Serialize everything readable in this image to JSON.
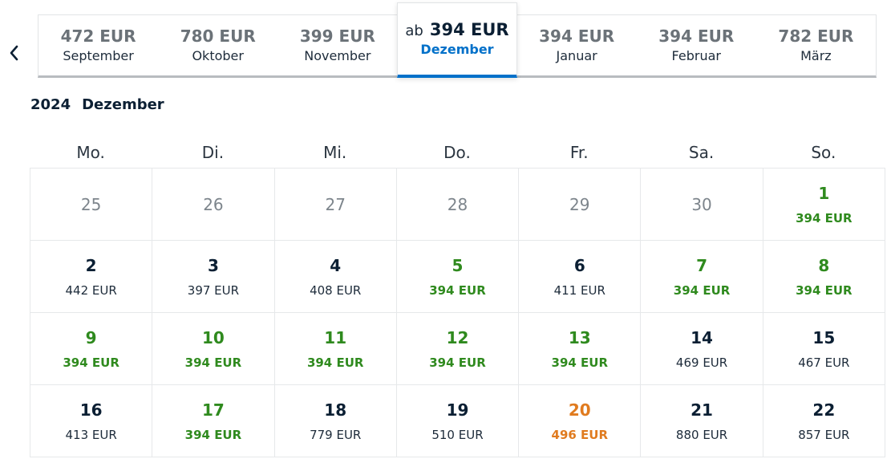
{
  "nav": {
    "prev_icon": "chevron-left-icon"
  },
  "months": [
    {
      "price": "472 EUR",
      "name": "September"
    },
    {
      "price": "780 EUR",
      "name": "Oktober"
    },
    {
      "price": "399 EUR",
      "name": "November"
    },
    {
      "prefix": "ab",
      "price": "394 EUR",
      "name": "Dezember",
      "active": true
    },
    {
      "price": "394 EUR",
      "name": "Januar"
    },
    {
      "price": "394 EUR",
      "name": "Februar"
    },
    {
      "price": "782 EUR",
      "name": "März"
    }
  ],
  "calendar": {
    "year": "2024",
    "month": "Dezember",
    "weekdays": [
      "Mo.",
      "Di.",
      "Mi.",
      "Do.",
      "Fr.",
      "Sa.",
      "So."
    ],
    "days": [
      {
        "day": "25",
        "price": "",
        "state": "outside"
      },
      {
        "day": "26",
        "price": "",
        "state": "outside"
      },
      {
        "day": "27",
        "price": "",
        "state": "outside"
      },
      {
        "day": "28",
        "price": "",
        "state": "outside"
      },
      {
        "day": "29",
        "price": "",
        "state": "outside"
      },
      {
        "day": "30",
        "price": "",
        "state": "outside"
      },
      {
        "day": "1",
        "price": "394 EUR",
        "state": "cheap"
      },
      {
        "day": "2",
        "price": "442 EUR",
        "state": "normal"
      },
      {
        "day": "3",
        "price": "397 EUR",
        "state": "normal"
      },
      {
        "day": "4",
        "price": "408 EUR",
        "state": "normal"
      },
      {
        "day": "5",
        "price": "394 EUR",
        "state": "cheap"
      },
      {
        "day": "6",
        "price": "411 EUR",
        "state": "normal"
      },
      {
        "day": "7",
        "price": "394 EUR",
        "state": "cheap"
      },
      {
        "day": "8",
        "price": "394 EUR",
        "state": "cheap"
      },
      {
        "day": "9",
        "price": "394 EUR",
        "state": "cheap"
      },
      {
        "day": "10",
        "price": "394 EUR",
        "state": "cheap"
      },
      {
        "day": "11",
        "price": "394 EUR",
        "state": "cheap"
      },
      {
        "day": "12",
        "price": "394 EUR",
        "state": "cheap"
      },
      {
        "day": "13",
        "price": "394 EUR",
        "state": "cheap"
      },
      {
        "day": "14",
        "price": "469 EUR",
        "state": "normal"
      },
      {
        "day": "15",
        "price": "467 EUR",
        "state": "normal"
      },
      {
        "day": "16",
        "price": "413 EUR",
        "state": "normal"
      },
      {
        "day": "17",
        "price": "394 EUR",
        "state": "cheap"
      },
      {
        "day": "18",
        "price": "779 EUR",
        "state": "normal"
      },
      {
        "day": "19",
        "price": "510 EUR",
        "state": "normal"
      },
      {
        "day": "20",
        "price": "496 EUR",
        "state": "mid"
      },
      {
        "day": "21",
        "price": "880 EUR",
        "state": "normal"
      },
      {
        "day": "22",
        "price": "857 EUR",
        "state": "normal"
      }
    ]
  },
  "colors": {
    "accent": "#0070c9",
    "cheap": "#2f8a1e",
    "mid": "#e07b1f",
    "text": "#0b1f33",
    "muted": "#6b7278"
  }
}
